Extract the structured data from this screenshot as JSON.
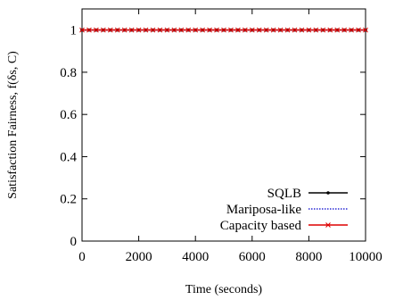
{
  "chart_data": {
    "type": "line",
    "xlabel": "Time (seconds)",
    "ylabel": "Satisfaction Fairness, f(δs, C)",
    "xlim": [
      0,
      10000
    ],
    "ylim": [
      0,
      1.1
    ],
    "x_ticks": [
      0,
      2000,
      4000,
      6000,
      8000,
      10000
    ],
    "x_tick_labels": [
      "0",
      "2000",
      "4000",
      "6000",
      "8000",
      "10000"
    ],
    "y_ticks": [
      0,
      0.2,
      0.4,
      0.6,
      0.8,
      1
    ],
    "y_tick_labels": [
      "0",
      "0.2",
      "0.4",
      "0.6",
      "0.8",
      "1"
    ],
    "grid": false,
    "legend_position": "bottom-right",
    "x": [
      0,
      250,
      500,
      750,
      1000,
      1250,
      1500,
      1750,
      2000,
      2250,
      2500,
      2750,
      3000,
      3250,
      3500,
      3750,
      4000,
      4250,
      4500,
      4750,
      5000,
      5250,
      5500,
      5750,
      6000,
      6250,
      6500,
      6750,
      7000,
      7250,
      7500,
      7750,
      8000,
      8250,
      8500,
      8750,
      9000,
      9250,
      9500,
      9750,
      10000
    ],
    "series": [
      {
        "name": "SQLB",
        "color": "#000000",
        "style": "solid",
        "marker": "dot",
        "values": [
          1,
          1,
          1,
          1,
          1,
          1,
          1,
          1,
          1,
          1,
          1,
          1,
          1,
          1,
          1,
          1,
          1,
          1,
          1,
          1,
          1,
          1,
          1,
          1,
          1,
          1,
          1,
          1,
          1,
          1,
          1,
          1,
          1,
          1,
          1,
          1,
          1,
          1,
          1,
          1,
          1
        ]
      },
      {
        "name": "Mariposa-like",
        "color": "#0000cc",
        "style": "dotted",
        "marker": "none",
        "values": [
          1,
          1,
          1,
          1,
          1,
          1,
          1,
          1,
          1,
          1,
          1,
          1,
          1,
          1,
          1,
          1,
          1,
          1,
          1,
          1,
          1,
          1,
          1,
          1,
          1,
          1,
          1,
          1,
          1,
          1,
          1,
          1,
          1,
          1,
          1,
          1,
          1,
          1,
          1,
          1,
          1
        ]
      },
      {
        "name": "Capacity based",
        "color": "#dd0000",
        "style": "solid",
        "marker": "cross",
        "values": [
          1,
          1,
          1,
          1,
          1,
          1,
          1,
          1,
          1,
          1,
          1,
          1,
          1,
          1,
          1,
          1,
          1,
          1,
          1,
          1,
          1,
          1,
          1,
          1,
          1,
          1,
          1,
          1,
          1,
          1,
          1,
          1,
          1,
          1,
          1,
          1,
          1,
          1,
          1,
          1,
          1
        ]
      }
    ]
  }
}
